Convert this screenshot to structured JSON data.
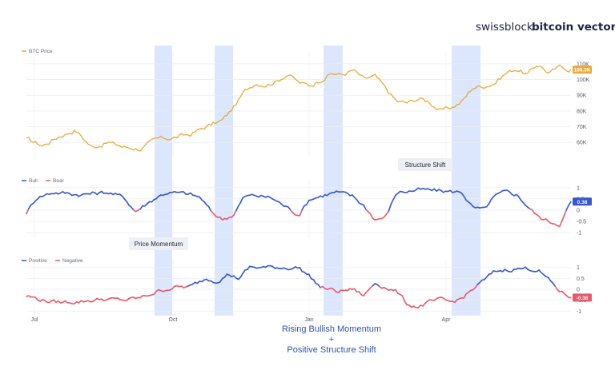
{
  "brand": {
    "left": "swissblock",
    "right": "bitcoin vector"
  },
  "caption": {
    "line1": "Rising Bullish Momentum",
    "line2": "+",
    "line3": "Positive Structure Shift"
  },
  "annotations": {
    "structure_shift": "Structure Shift",
    "price_momentum": "Price Momentum"
  },
  "colors": {
    "price": "#E9A93B",
    "bull": "#3657D0",
    "bear": "#E85A6A",
    "highlight": "#D6E2FB",
    "grid": "#ECEEF2"
  },
  "chart_data": [
    {
      "type": "line",
      "panel": "price",
      "series": [
        {
          "name": "BTC Price"
        }
      ],
      "x_ticks": [
        "Jul",
        "Oct",
        "Jan",
        "Apr"
      ],
      "y_ticks": [
        "60K",
        "70K",
        "80K",
        "90K",
        "100K",
        "110K"
      ],
      "ylim": [
        53,
        114
      ],
      "last_value_label": "106.3K",
      "keypoints_x": [
        0,
        0.03,
        0.06,
        0.09,
        0.12,
        0.15,
        0.18,
        0.21,
        0.24,
        0.27,
        0.3,
        0.33,
        0.36,
        0.38,
        0.4,
        0.42,
        0.44,
        0.46,
        0.48,
        0.5,
        0.52,
        0.54,
        0.56,
        0.58,
        0.6,
        0.62,
        0.64,
        0.66,
        0.68,
        0.7,
        0.72,
        0.74,
        0.76,
        0.78,
        0.8,
        0.82,
        0.84,
        0.86,
        0.88,
        0.9,
        0.92,
        0.94,
        0.96,
        0.98,
        1
      ],
      "keypoints_y": [
        62,
        58,
        64,
        68,
        57,
        60,
        57,
        56,
        62,
        63,
        65,
        70,
        74,
        82,
        92,
        98,
        97,
        99,
        104,
        98,
        96,
        100,
        104,
        103,
        106,
        100,
        102,
        94,
        86,
        85,
        88,
        86,
        80,
        82,
        86,
        95,
        96,
        98,
        104,
        107,
        103,
        110,
        104,
        108,
        106.3
      ]
    },
    {
      "type": "line",
      "panel": "structure",
      "series": [
        {
          "name": "Bull"
        },
        {
          "name": "Bear"
        }
      ],
      "y_ticks": [
        "1",
        "0.5",
        "0",
        "-0.5",
        "-1"
      ],
      "ylim": [
        -1.1,
        1.1
      ],
      "last_value_label": "0.38",
      "keypoints_x": [
        0,
        0.02,
        0.05,
        0.1,
        0.15,
        0.18,
        0.2,
        0.24,
        0.26,
        0.3,
        0.32,
        0.34,
        0.36,
        0.38,
        0.4,
        0.42,
        0.45,
        0.48,
        0.5,
        0.52,
        0.55,
        0.57,
        0.6,
        0.62,
        0.64,
        0.66,
        0.68,
        0.72,
        0.76,
        0.8,
        0.82,
        0.84,
        0.86,
        0.88,
        0.9,
        0.92,
        0.94,
        0.96,
        0.98,
        1
      ],
      "keypoints_y": [
        -0.1,
        0.6,
        0.8,
        0.7,
        0.8,
        0.55,
        -0.05,
        0.6,
        0.8,
        0.7,
        0.55,
        -0.1,
        -0.4,
        -0.2,
        0.6,
        0.65,
        0.55,
        0.1,
        -0.2,
        0.5,
        0.7,
        0.8,
        0.6,
        0.2,
        -0.4,
        -0.3,
        0.8,
        0.9,
        0.85,
        0.8,
        0.1,
        0.0,
        0.6,
        0.8,
        0.7,
        0.2,
        -0.3,
        -0.5,
        -0.6,
        0.38
      ]
    },
    {
      "type": "line",
      "panel": "momentum",
      "series": [
        {
          "name": "Positive"
        },
        {
          "name": "Negative"
        }
      ],
      "y_ticks": [
        "1",
        "0.5",
        "0",
        "-0.5",
        "-1"
      ],
      "ylim": [
        -1.1,
        1.1
      ],
      "last_value_label": "-0.38",
      "keypoints_x": [
        0,
        0.03,
        0.06,
        0.1,
        0.14,
        0.18,
        0.21,
        0.24,
        0.27,
        0.3,
        0.33,
        0.35,
        0.37,
        0.39,
        0.41,
        0.45,
        0.5,
        0.52,
        0.54,
        0.57,
        0.6,
        0.62,
        0.64,
        0.66,
        0.68,
        0.7,
        0.72,
        0.74,
        0.76,
        0.78,
        0.8,
        0.82,
        0.84,
        0.86,
        0.88,
        0.9,
        0.92,
        0.94,
        0.96,
        0.98,
        1
      ],
      "keypoints_y": [
        -0.3,
        -0.5,
        -0.6,
        -0.55,
        -0.45,
        -0.5,
        -0.4,
        -0.1,
        0.1,
        0.1,
        0.5,
        0.4,
        0.7,
        0.5,
        1.0,
        1.0,
        1.0,
        0.6,
        0.1,
        -0.1,
        0.0,
        -0.3,
        0.3,
        0.1,
        -0.1,
        -0.7,
        -0.8,
        -0.6,
        -0.5,
        -0.6,
        -0.4,
        0.0,
        0.4,
        0.8,
        0.9,
        0.95,
        0.95,
        0.9,
        0.4,
        -0.1,
        -0.38
      ]
    }
  ]
}
